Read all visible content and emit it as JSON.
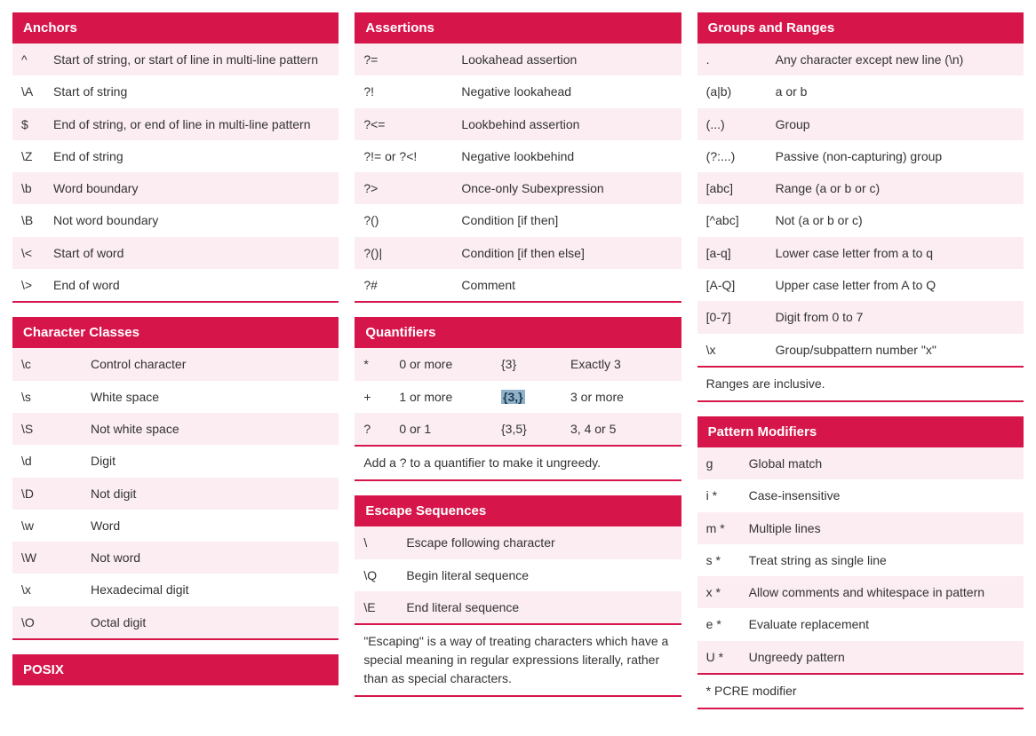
{
  "colors": {
    "accent": "#d6164b",
    "row_odd": "#fbedf2",
    "row_even": "#ffffff",
    "text": "#333333",
    "highlight_bg": "#8fb2c9"
  },
  "columns": [
    {
      "cards": [
        {
          "title": "Anchors",
          "sym_class": "w-anchors",
          "rows": [
            {
              "sym": "^",
              "desc": "Start of string, or start of line in multi-line pattern"
            },
            {
              "sym": "\\A",
              "desc": "Start of string"
            },
            {
              "sym": "$",
              "desc": "End of string, or end of line in multi-line pattern"
            },
            {
              "sym": "\\Z",
              "desc": "End of string"
            },
            {
              "sym": "\\b",
              "desc": "Word boundary"
            },
            {
              "sym": "\\B",
              "desc": "Not word boundary"
            },
            {
              "sym": "\\<",
              "desc": "Start of word"
            },
            {
              "sym": "\\>",
              "desc": "End of word"
            }
          ]
        },
        {
          "title": "Character Classes",
          "sym_class": "w-char",
          "rows": [
            {
              "sym": "\\c",
              "desc": "Control character"
            },
            {
              "sym": "\\s",
              "desc": "White space"
            },
            {
              "sym": "\\S",
              "desc": "Not white space"
            },
            {
              "sym": "\\d",
              "desc": "Digit"
            },
            {
              "sym": "\\D",
              "desc": "Not digit"
            },
            {
              "sym": "\\w",
              "desc": "Word"
            },
            {
              "sym": "\\W",
              "desc": "Not word"
            },
            {
              "sym": "\\x",
              "desc": "Hexadecimal digit"
            },
            {
              "sym": "\\O",
              "desc": "Octal digit"
            }
          ]
        },
        {
          "title": "POSIX",
          "sym_class": "w-char",
          "rows": []
        }
      ]
    },
    {
      "cards": [
        {
          "title": "Assertions",
          "sym_class": "w-assert",
          "rows": [
            {
              "sym": "?=",
              "desc": "Lookahead assertion"
            },
            {
              "sym": "?!",
              "desc": "Negative lookahead"
            },
            {
              "sym": "?<=",
              "desc": "Lookbehind assertion"
            },
            {
              "sym": "?!= or ?<!",
              "desc": "Negative lookbehind"
            },
            {
              "sym": "?>",
              "desc": "Once-only Subexpression"
            },
            {
              "sym": "?()",
              "desc": "Condition [if then]"
            },
            {
              "sym": "?()|",
              "desc": "Condition [if then else]"
            },
            {
              "sym": "?#",
              "desc": "Comment"
            }
          ]
        },
        {
          "title": "Quantifiers",
          "type": "quant",
          "rows": [
            {
              "c1": "*",
              "c2": "0 or more",
              "c3": "{3}",
              "c4": "Exactly 3"
            },
            {
              "c1": "+",
              "c2": "1 or more",
              "c3_hl": "{3,}",
              "c4": "3 or more"
            },
            {
              "c1": "?",
              "c2": "0 or 1",
              "c3": "{3,5}",
              "c4": "3, 4 or 5"
            }
          ],
          "note": "Add a ? to a quantifier to make it ungreedy."
        },
        {
          "title": "Escape Sequences",
          "sym_class": "w-esc",
          "rows": [
            {
              "sym": "\\",
              "desc": "Escape following character"
            },
            {
              "sym": "\\Q",
              "desc": "Begin literal sequence"
            },
            {
              "sym": "\\E",
              "desc": "End literal sequence"
            }
          ],
          "note": "\"Escaping\" is a way of treating characters which have a special meaning in regular expressions literally, rather than as special characters."
        }
      ]
    },
    {
      "cards": [
        {
          "title": "Groups and Ranges",
          "sym_class": "w-groups",
          "rows": [
            {
              "sym": ".",
              "desc": "Any character except new line (\\n)"
            },
            {
              "sym": "(a|b)",
              "desc": "a or b"
            },
            {
              "sym": "(...)",
              "desc": "Group"
            },
            {
              "sym": "(?:...)",
              "desc": "Passive (non-capturing) group"
            },
            {
              "sym": "[abc]",
              "desc": "Range (a or b or c)"
            },
            {
              "sym": "[^abc]",
              "desc": "Not (a or b or c)"
            },
            {
              "sym": "[a-q]",
              "desc": "Lower case letter from a to q"
            },
            {
              "sym": "[A-Q]",
              "desc": "Upper case letter from A to Q"
            },
            {
              "sym": "[0-7]",
              "desc": "Digit from 0 to 7"
            },
            {
              "sym": "\\x",
              "desc": "Group/subpattern number \"x\""
            }
          ],
          "note": "Ranges are inclusive."
        },
        {
          "title": "Pattern Modifiers",
          "sym_class": "w-mod",
          "rows": [
            {
              "sym": "g",
              "desc": "Global match"
            },
            {
              "sym": "i *",
              "desc": "Case-insensitive"
            },
            {
              "sym": "m *",
              "desc": "Multiple lines"
            },
            {
              "sym": "s *",
              "desc": "Treat string as single line"
            },
            {
              "sym": "x *",
              "desc": "Allow comments and whitespace in pattern"
            },
            {
              "sym": "e *",
              "desc": "Evaluate replacement"
            },
            {
              "sym": "U *",
              "desc": "Ungreedy pattern"
            }
          ],
          "note": "* PCRE modifier"
        }
      ]
    }
  ]
}
